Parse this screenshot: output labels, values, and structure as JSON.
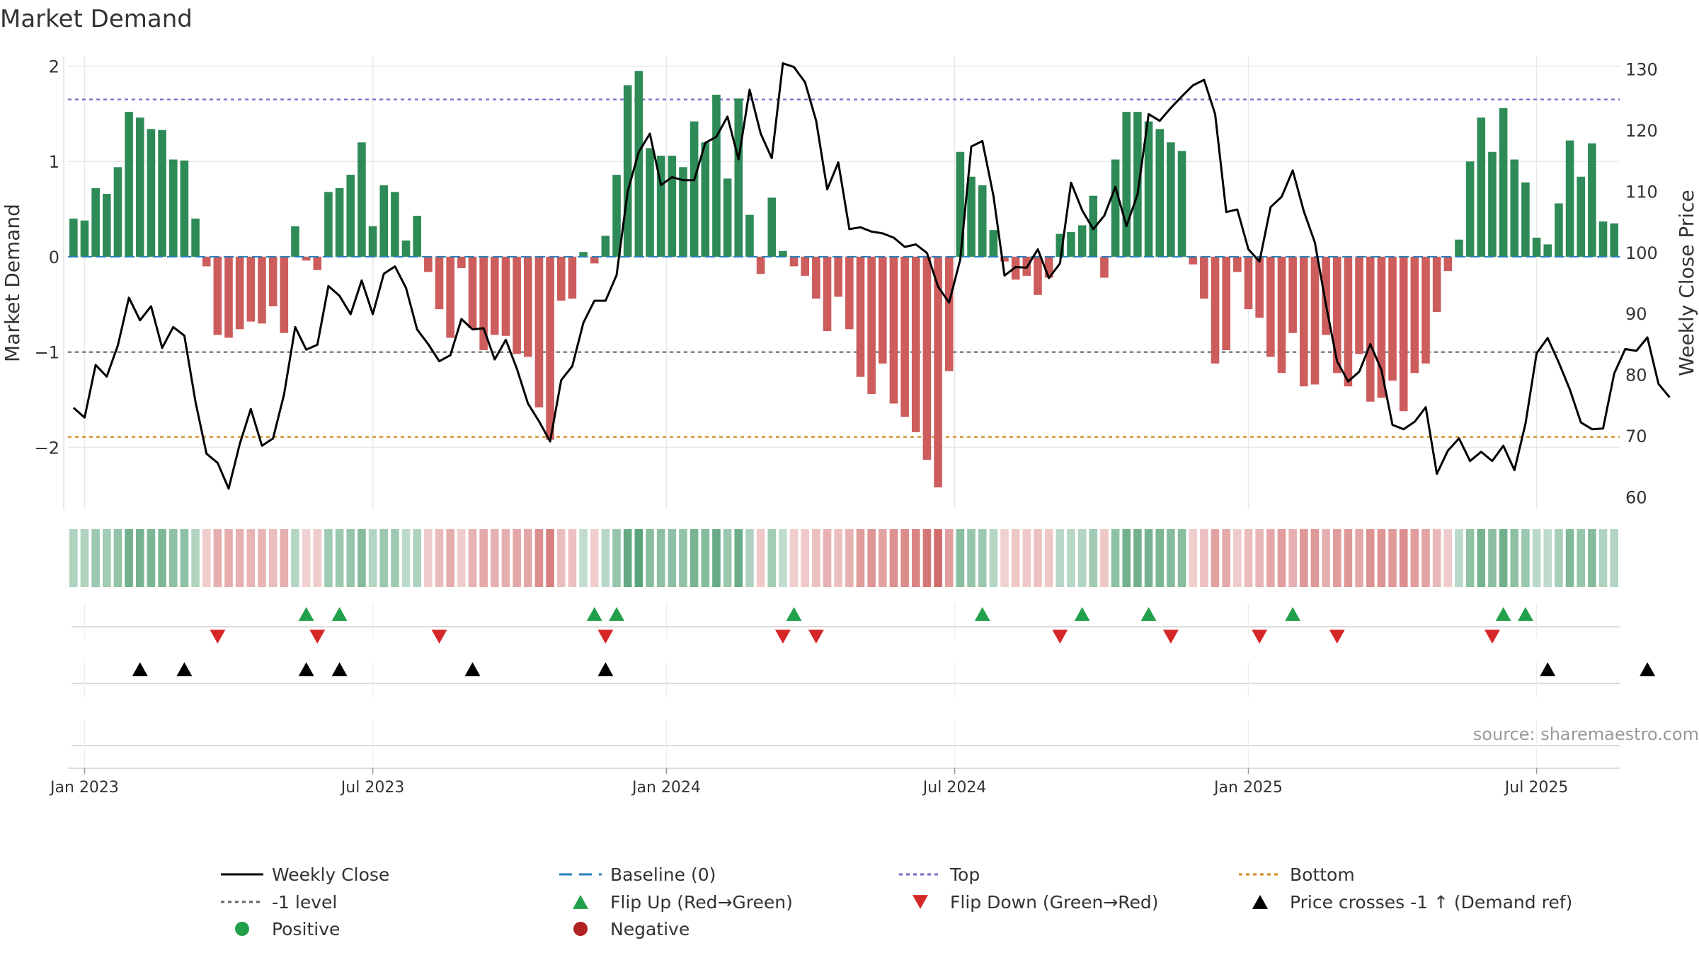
{
  "chart_data": {
    "type": "bar",
    "title": "Market Demand",
    "ylabel": "Market Demand",
    "y2label": "Weekly Close Price",
    "ylim": [
      -2.65,
      2.1
    ],
    "y2lim": [
      58,
      132
    ],
    "y_ticks": [
      -2,
      -1,
      0,
      1,
      2
    ],
    "y2_ticks": [
      60,
      70,
      80,
      90,
      100,
      110,
      120,
      130
    ],
    "x_ticks": [
      {
        "label": "Jan 2023",
        "week": 1
      },
      {
        "label": "Jul 2023",
        "week": 27
      },
      {
        "label": "Jan 2024",
        "week": 53.5
      },
      {
        "label": "Jul 2024",
        "week": 79.5
      },
      {
        "label": "Jan 2025",
        "week": 106
      },
      {
        "label": "Jul 2025",
        "week": 132
      }
    ],
    "source": "source: sharemaestro.com",
    "reference_lines": [
      {
        "name": "Top",
        "value": 1.65,
        "color": "#7b68c8"
      },
      {
        "name": "-1 level",
        "value": -1,
        "color": "#666666"
      },
      {
        "name": "Bottom",
        "value": -1.89,
        "color": "#d08a1a"
      },
      {
        "name": "Baseline (0)",
        "value": 0,
        "color": "#2a7fb8"
      }
    ],
    "series": [
      {
        "name": "Market Demand",
        "values": [
          0.4,
          0.38,
          0.72,
          0.66,
          0.94,
          1.52,
          1.46,
          1.34,
          1.33,
          1.02,
          1.01,
          0.4,
          -0.1,
          -0.82,
          -0.85,
          -0.76,
          -0.68,
          -0.7,
          -0.52,
          -0.8,
          0.32,
          -0.04,
          -0.14,
          0.68,
          0.72,
          0.86,
          1.2,
          0.32,
          0.75,
          0.68,
          0.17,
          0.43,
          -0.16,
          -0.55,
          -0.85,
          -0.12,
          -0.75,
          -0.98,
          -0.82,
          -0.83,
          -1.02,
          -1.05,
          -1.58,
          -1.92,
          -0.46,
          -0.44,
          0.05,
          -0.07,
          0.22,
          0.86,
          1.8,
          1.95,
          1.14,
          1.06,
          1.06,
          0.94,
          1.42,
          1.2,
          1.7,
          0.82,
          1.66,
          0.44,
          -0.18,
          0.62,
          0.06,
          -0.1,
          -0.2,
          -0.44,
          -0.78,
          -0.42,
          -0.76,
          -1.26,
          -1.44,
          -1.12,
          -1.54,
          -1.68,
          -1.84,
          -2.13,
          -2.42,
          -1.2,
          1.1,
          0.84,
          0.75,
          0.28,
          -0.05,
          -0.24,
          -0.2,
          -0.4,
          -0.22,
          0.24,
          0.26,
          0.33,
          0.64,
          -0.22,
          1.02,
          1.52,
          1.52,
          1.42,
          1.34,
          1.2,
          1.11,
          -0.08,
          -0.44,
          -1.12,
          -0.98,
          -0.16,
          -0.55,
          -0.64,
          -1.05,
          -1.22,
          -0.8,
          -1.36,
          -1.34,
          -0.82,
          -1.22,
          -1.36,
          -1.02,
          -1.52,
          -1.48,
          -1.3,
          -1.62,
          -1.22,
          -1.12,
          -0.58,
          -0.15,
          0.18,
          1.0,
          1.46,
          1.1,
          1.56,
          1.02,
          0.78,
          0.2,
          0.13,
          0.56,
          1.22,
          0.84,
          1.19,
          0.37,
          0.35
        ]
      },
      {
        "name": "Weekly Close",
        "values": [
          74.6,
          73,
          81.6,
          79.7,
          84.8,
          92.6,
          88.9,
          91.2,
          84.4,
          87.8,
          86.4,
          75.6,
          67.1,
          65.6,
          61.4,
          68.7,
          74.4,
          68.4,
          69.6,
          76.8,
          87.8,
          84.1,
          84.9,
          94.5,
          92.9,
          89.9,
          95.4,
          89.9,
          96.5,
          97.7,
          94.2,
          87.4,
          85,
          82.2,
          83.2,
          89.1,
          87.4,
          87.6,
          82.5,
          85.7,
          81,
          75.3,
          72.4,
          69.1,
          79.1,
          81.4,
          88.5,
          92.1,
          92.1,
          96.3,
          110,
          116.4,
          119.4,
          111,
          112.3,
          111.8,
          111.8,
          117.9,
          118.9,
          122.2,
          115.2,
          126.6,
          119.4,
          115.4,
          130.9,
          130.3,
          127.8,
          121.5,
          110.3,
          114.7,
          103.8,
          104.1,
          103.4,
          103.1,
          102.4,
          100.9,
          101.3,
          99.9,
          94.4,
          91.8,
          98.8,
          117.3,
          118.2,
          109.2,
          96.2,
          97.6,
          97.5,
          100.5,
          95.8,
          98.2,
          111.4,
          106.9,
          103.8,
          106,
          110.7,
          104.3,
          109.5,
          122.6,
          121.5,
          123.6,
          125.5,
          127.3,
          128.2,
          122.6,
          106.6,
          107,
          100.5,
          98.5,
          107.4,
          109.1,
          113.4,
          106.7,
          101.6,
          91.4,
          82.2,
          78.9,
          80.5,
          85,
          80.8,
          71.8,
          71.1,
          72.3,
          74.7,
          63.8,
          67.6,
          69.6,
          65.9,
          67.4,
          65.9,
          68.4,
          64.4,
          72,
          83.5,
          86,
          82,
          77.6,
          72.2,
          71.1,
          71.2,
          80.2,
          84.2,
          83.9,
          86.1,
          78.5,
          76.3
        ]
      }
    ],
    "flip_up_weeks": [
      21,
      24,
      47,
      49,
      65,
      82,
      91,
      97,
      110,
      129,
      131
    ],
    "flip_down_weeks": [
      13,
      22,
      33,
      48,
      64,
      67,
      89,
      99,
      107,
      114,
      128
    ],
    "price_cross_weeks": [
      6,
      10,
      21,
      24,
      36,
      48,
      133,
      142
    ]
  },
  "legend": [
    {
      "label": "Weekly Close",
      "symbol": "line",
      "color": "#000000"
    },
    {
      "label": "Baseline (0)",
      "symbol": "dash",
      "color": "#2a7fb8"
    },
    {
      "label": "Top",
      "symbol": "dot",
      "color": "#7b68c8"
    },
    {
      "label": "Bottom",
      "symbol": "dot",
      "color": "#d08a1a"
    },
    {
      "label": "-1 level",
      "symbol": "dot",
      "color": "#666666"
    },
    {
      "label": "Flip Up (Red→Green)",
      "symbol": "tri-up",
      "color": "#22a04b"
    },
    {
      "label": "Flip Down (Green→Red)",
      "symbol": "tri-down",
      "color": "#d62728"
    },
    {
      "label": "Price crosses -1 ↑ (Demand ref)",
      "symbol": "tri-up",
      "color": "#000000"
    },
    {
      "label": "Positive",
      "symbol": "circle",
      "color": "#22a04b"
    },
    {
      "label": "Negative",
      "symbol": "circle",
      "color": "#b22222"
    }
  ],
  "colors": {
    "positive_bar": "#2e8b57",
    "negative_bar": "#cd5c5c",
    "price_line": "#000000",
    "grid": "#e8e8e8"
  }
}
